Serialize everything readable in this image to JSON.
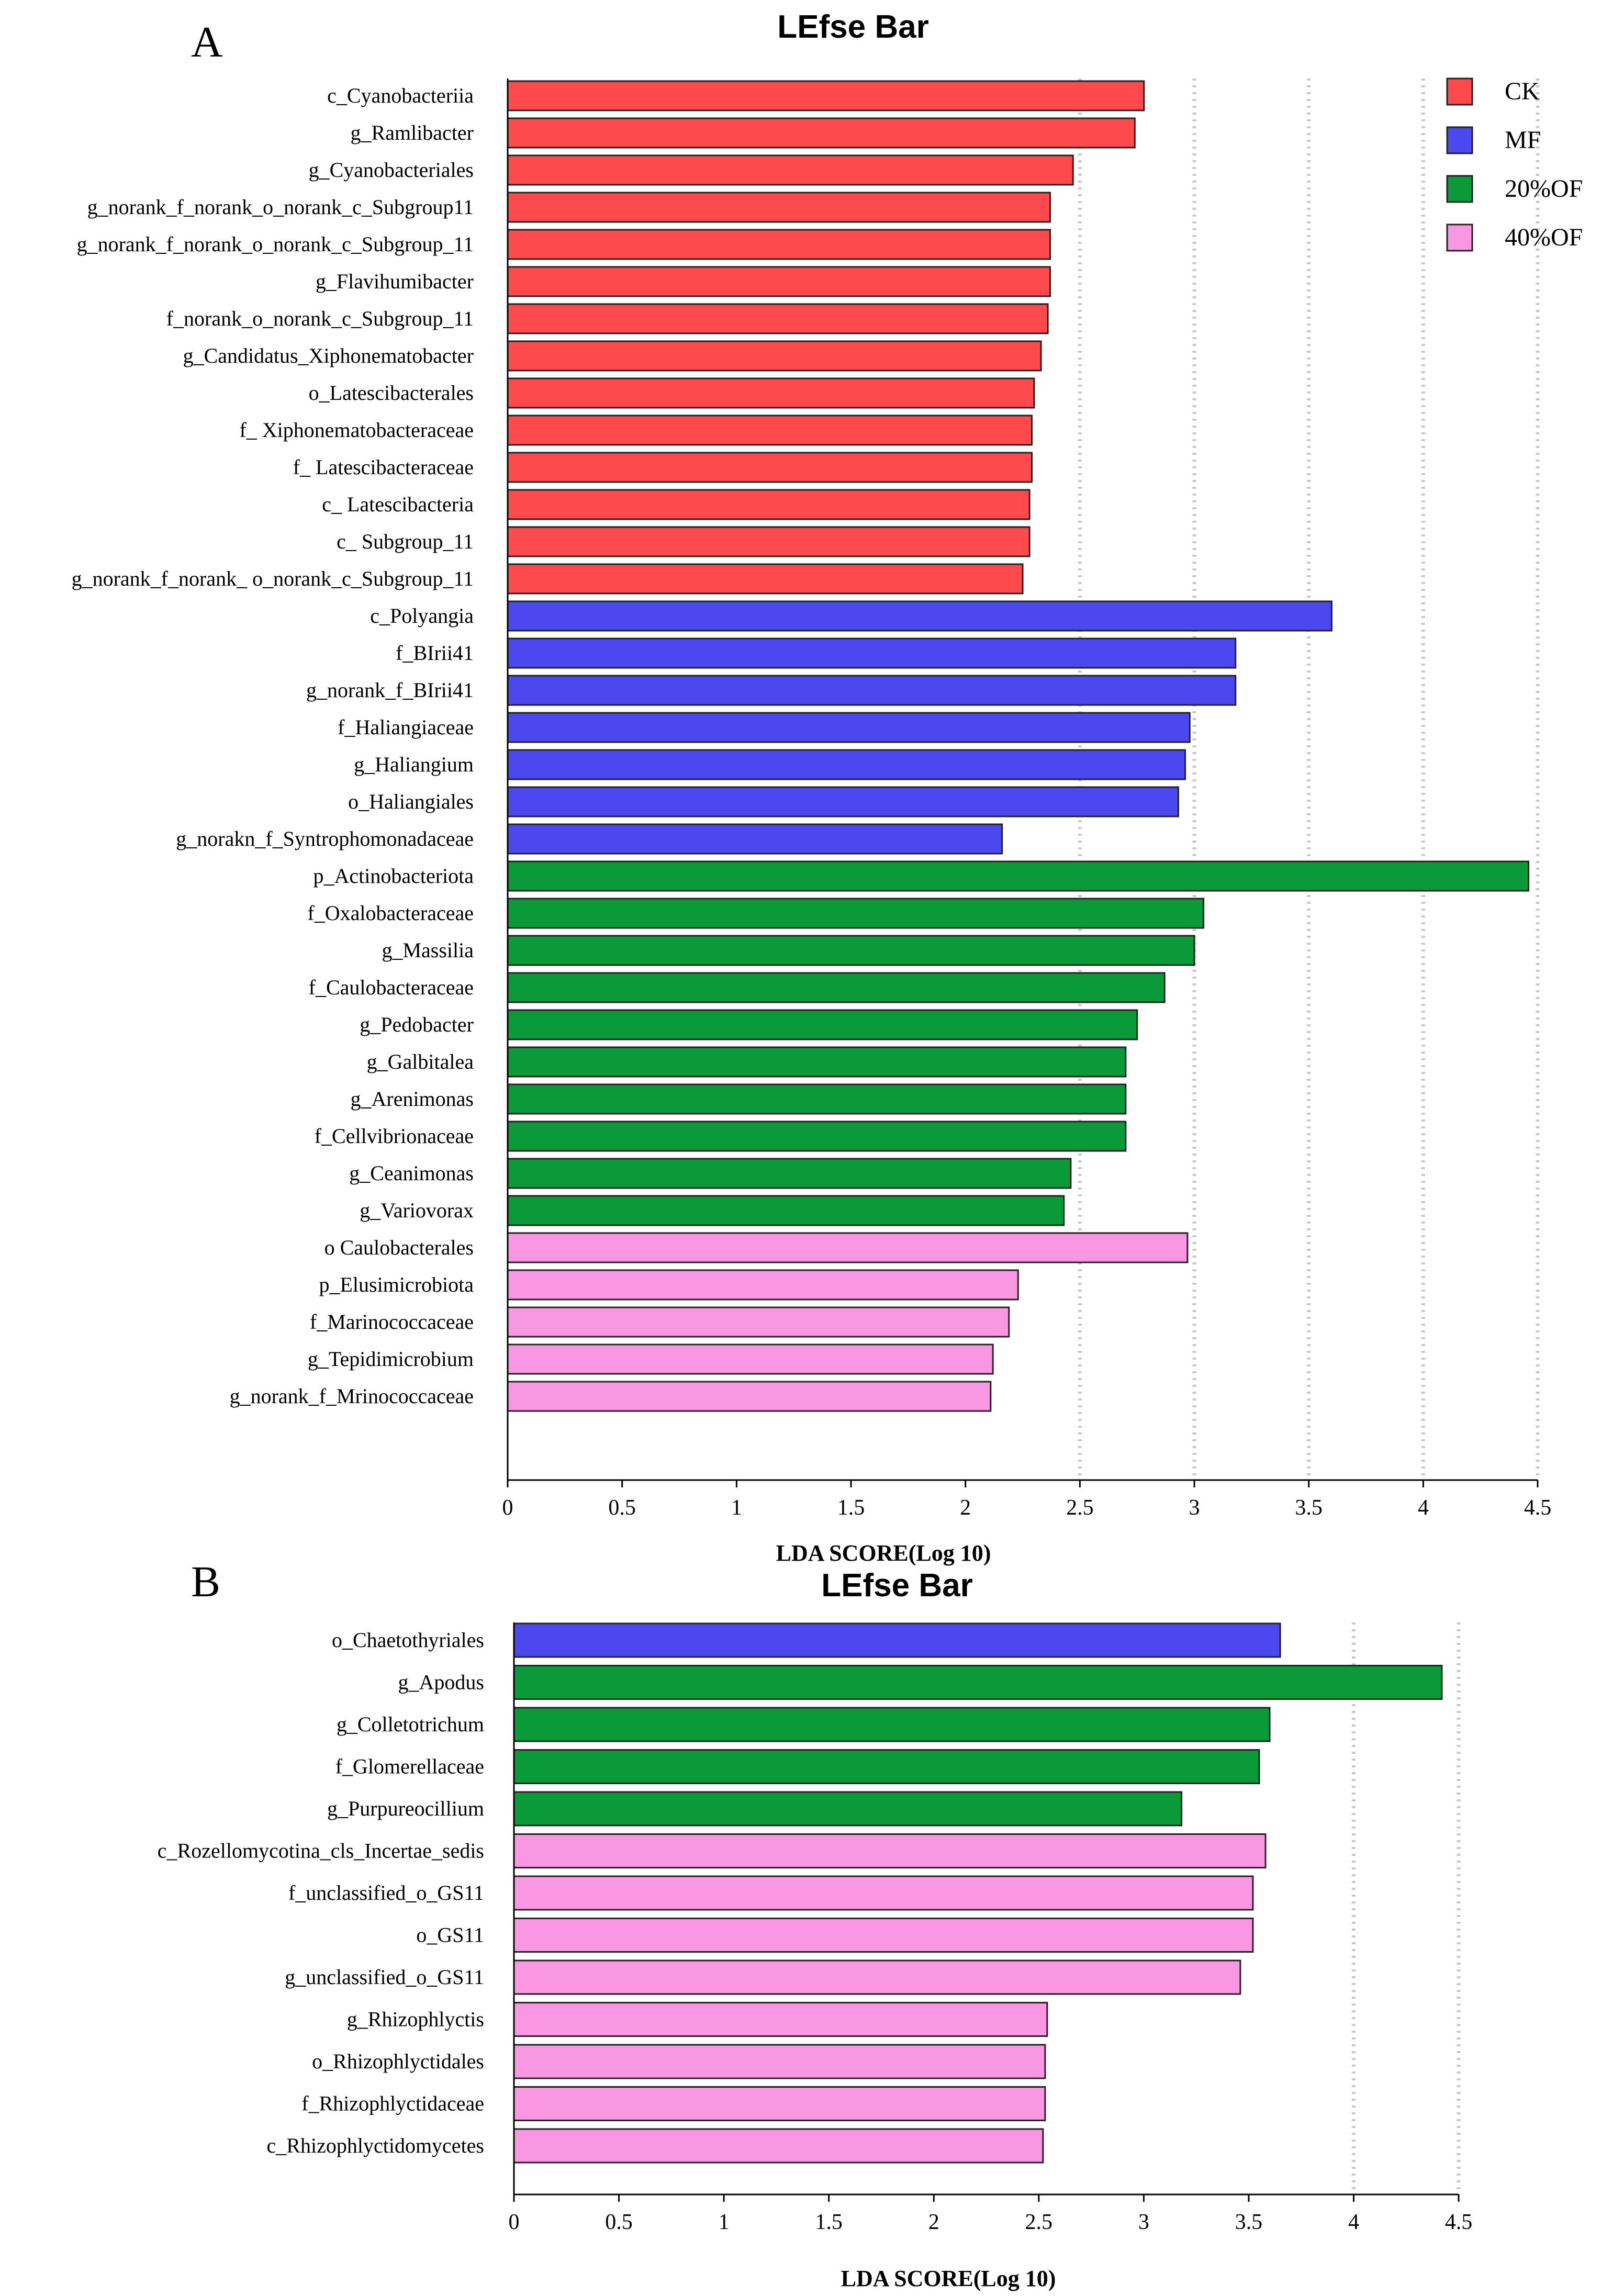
{
  "colors": {
    "CK": "#fe4a4d",
    "MF": "#4a48ee",
    "20%OF": "#0b9a3a",
    "40%OF": "#fa97e3"
  },
  "chart_data": [
    {
      "panel": "A",
      "type": "bar",
      "orientation": "horizontal",
      "title": "LEfse Bar",
      "xlabel": "LDA SCORE(Log 10)",
      "xlim": [
        0,
        4.5
      ],
      "xticks": [
        "0",
        "0.5",
        "1",
        "1.5",
        "2",
        "2.5",
        "3",
        "3.5",
        "4",
        "4.5"
      ],
      "grid": "dotted vertical at 2.5, 3, 3.5, 4, 4.5",
      "legend": {
        "position": "top-right",
        "entries": [
          "CK",
          "MF",
          "20%OF",
          "40%OF"
        ]
      },
      "bars": [
        {
          "label": "c_Cyanobacteriia",
          "value": 2.78,
          "group": "CK"
        },
        {
          "label": "g_Ramlibacter",
          "value": 2.74,
          "group": "CK"
        },
        {
          "label": "g_Cyanobacteriales",
          "value": 2.47,
          "group": "CK"
        },
        {
          "label": "g_norank_f_norank_o_norank_c_Subgroup11",
          "value": 2.37,
          "group": "CK"
        },
        {
          "label": "g_norank_f_norank_o_norank_c_Subgroup_11",
          "value": 2.37,
          "group": "CK"
        },
        {
          "label": "g_Flavihumibacter",
          "value": 2.37,
          "group": "CK"
        },
        {
          "label": "f_norank_o_norank_c_Subgroup_11",
          "value": 2.36,
          "group": "CK"
        },
        {
          "label": "g_Candidatus_Xiphonematobacter",
          "value": 2.33,
          "group": "CK"
        },
        {
          "label": "o_Latescibacterales",
          "value": 2.3,
          "group": "CK"
        },
        {
          "label": "f_ Xiphonematobacteraceae",
          "value": 2.29,
          "group": "CK"
        },
        {
          "label": "f_ Latescibacteraceae",
          "value": 2.29,
          "group": "CK"
        },
        {
          "label": "c_ Latescibacteria",
          "value": 2.28,
          "group": "CK"
        },
        {
          "label": "c_ Subgroup_11",
          "value": 2.28,
          "group": "CK"
        },
        {
          "label": "g_norank_f_norank_ o_norank_c_Subgroup_11",
          "value": 2.25,
          "group": "CK"
        },
        {
          "label": "c_Polyangia",
          "value": 3.6,
          "group": "MF"
        },
        {
          "label": "f_BIrii41",
          "value": 3.18,
          "group": "MF"
        },
        {
          "label": "g_norank_f_BIrii41",
          "value": 3.18,
          "group": "MF"
        },
        {
          "label": "f_Haliangiaceae",
          "value": 2.98,
          "group": "MF"
        },
        {
          "label": "g_Haliangium",
          "value": 2.96,
          "group": "MF"
        },
        {
          "label": "o_Haliangiales",
          "value": 2.93,
          "group": "MF"
        },
        {
          "label": "g_norakn_f_Syntrophomonadaceae",
          "value": 2.16,
          "group": "MF"
        },
        {
          "label": "p_Actinobacteriota",
          "value": 4.46,
          "group": "20%OF"
        },
        {
          "label": "f_Oxalobacteraceae",
          "value": 3.04,
          "group": "20%OF"
        },
        {
          "label": "g_Massilia",
          "value": 3.0,
          "group": "20%OF"
        },
        {
          "label": "f_Caulobacteraceae",
          "value": 2.87,
          "group": "20%OF"
        },
        {
          "label": "g_Pedobacter",
          "value": 2.75,
          "group": "20%OF"
        },
        {
          "label": "g_Galbitalea",
          "value": 2.7,
          "group": "20%OF"
        },
        {
          "label": "g_Arenimonas",
          "value": 2.7,
          "group": "20%OF"
        },
        {
          "label": "f_Cellvibrionaceae",
          "value": 2.7,
          "group": "20%OF"
        },
        {
          "label": "g_Ceanimonas",
          "value": 2.46,
          "group": "20%OF"
        },
        {
          "label": "g_Variovorax",
          "value": 2.43,
          "group": "20%OF"
        },
        {
          "label": "o Caulobacterales",
          "value": 2.97,
          "group": "40%OF"
        },
        {
          "label": "p_Elusimicrobiota",
          "value": 2.23,
          "group": "40%OF"
        },
        {
          "label": "f_Marinococcaceae",
          "value": 2.19,
          "group": "40%OF"
        },
        {
          "label": "g_Tepidimicrobium",
          "value": 2.12,
          "group": "40%OF"
        },
        {
          "label": "g_norank_f_Mrinococcaceae",
          "value": 2.11,
          "group": "40%OF"
        }
      ]
    },
    {
      "panel": "B",
      "type": "bar",
      "orientation": "horizontal",
      "title": "LEfse Bar",
      "xlabel": "LDA SCORE(Log 10)",
      "xlim": [
        0,
        4.5
      ],
      "xticks": [
        "0",
        "0.5",
        "1",
        "1.5",
        "2",
        "2.5",
        "3",
        "3.5",
        "4",
        "4.5"
      ],
      "grid": "dotted vertical at 4, 4.5",
      "bars": [
        {
          "label": "o_Chaetothyriales",
          "value": 3.65,
          "group": "MF"
        },
        {
          "label": "g_Apodus",
          "value": 4.42,
          "group": "20%OF"
        },
        {
          "label": "g_Colletotrichum",
          "value": 3.6,
          "group": "20%OF"
        },
        {
          "label": "f_Glomerellaceae",
          "value": 3.55,
          "group": "20%OF"
        },
        {
          "label": "g_Purpureocillium",
          "value": 3.18,
          "group": "20%OF"
        },
        {
          "label": "c_Rozellomycotina_cls_Incertae_sedis",
          "value": 3.58,
          "group": "40%OF"
        },
        {
          "label": "f_unclassified_o_GS11",
          "value": 3.52,
          "group": "40%OF"
        },
        {
          "label": "o_GS11",
          "value": 3.52,
          "group": "40%OF"
        },
        {
          "label": "g_unclassified_o_GS11",
          "value": 3.46,
          "group": "40%OF"
        },
        {
          "label": "g_Rhizophlyctis",
          "value": 2.54,
          "group": "40%OF"
        },
        {
          "label": "o_Rhizophlyctidales",
          "value": 2.53,
          "group": "40%OF"
        },
        {
          "label": "f_Rhizophlyctidaceae",
          "value": 2.53,
          "group": "40%OF"
        },
        {
          "label": "c_Rhizophlyctidomycetes",
          "value": 2.52,
          "group": "40%OF"
        }
      ]
    }
  ]
}
